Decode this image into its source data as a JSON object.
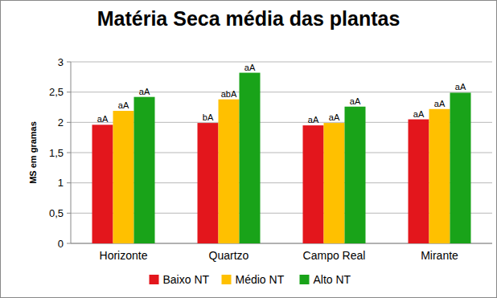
{
  "chart_data": {
    "type": "bar",
    "title": "Matéria Seca média das plantas",
    "y_label": "MS em gramas",
    "categories": [
      "Horizonte",
      "Quartzo",
      "Campo Real",
      "Mirante"
    ],
    "series": [
      {
        "name": "Baixo NT",
        "color": "#e3161c",
        "values": [
          1.96,
          1.99,
          1.95,
          2.05
        ],
        "labels": [
          "aA",
          "bA",
          "aA",
          "aA"
        ]
      },
      {
        "name": "Médio NT",
        "color": "#ffc000",
        "values": [
          2.19,
          2.38,
          1.99,
          2.22
        ],
        "labels": [
          "aA",
          "abA",
          "aA",
          "aA"
        ]
      },
      {
        "name": "Alto NT",
        "color": "#19a319",
        "values": [
          2.42,
          2.82,
          2.26,
          2.49
        ],
        "labels": [
          "aA",
          "aA",
          "aA",
          "aA"
        ]
      }
    ],
    "ylim": [
      0,
      3
    ],
    "yticks": [
      0,
      {
        "value": 0.5,
        "label": "0,5"
      },
      1,
      {
        "value": 1.5,
        "label": "1,5"
      },
      2,
      {
        "value": 2.5,
        "label": "2,5"
      },
      3
    ],
    "grid": true,
    "legend": "bottom"
  }
}
